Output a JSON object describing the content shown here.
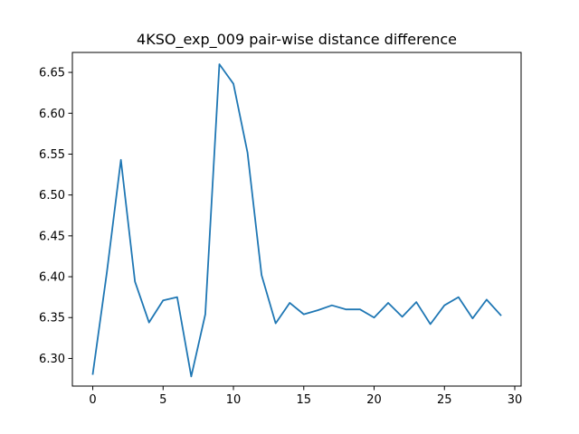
{
  "chart_data": {
    "type": "line",
    "title": "4KSO_exp_009 pair-wise distance difference",
    "xlabel": "",
    "ylabel": "",
    "xlim": [
      -1.45,
      30.45
    ],
    "ylim": [
      6.2662,
      6.6744
    ],
    "xticks": [
      0,
      5,
      10,
      15,
      20,
      25,
      30
    ],
    "yticks": [
      6.3,
      6.35,
      6.4,
      6.45,
      6.5,
      6.55,
      6.6,
      6.65
    ],
    "ytick_labels": [
      "6.30",
      "6.35",
      "6.40",
      "6.45",
      "6.50",
      "6.55",
      "6.60",
      "6.65"
    ],
    "grid": false,
    "series": [
      {
        "name": "",
        "color": "#1f77b4",
        "x": [
          0,
          1,
          2,
          3,
          4,
          5,
          6,
          7,
          8,
          9,
          10,
          11,
          12,
          13,
          14,
          15,
          16,
          17,
          18,
          19,
          20,
          21,
          22,
          23,
          24,
          25,
          26,
          27,
          28,
          29
        ],
        "y": [
          6.281,
          6.405,
          6.543,
          6.394,
          6.344,
          6.371,
          6.375,
          6.278,
          6.354,
          6.66,
          6.636,
          6.552,
          6.402,
          6.343,
          6.368,
          6.354,
          6.359,
          6.365,
          6.36,
          6.36,
          6.35,
          6.368,
          6.351,
          6.369,
          6.342,
          6.365,
          6.375,
          6.349,
          6.372,
          6.353
        ]
      }
    ]
  }
}
